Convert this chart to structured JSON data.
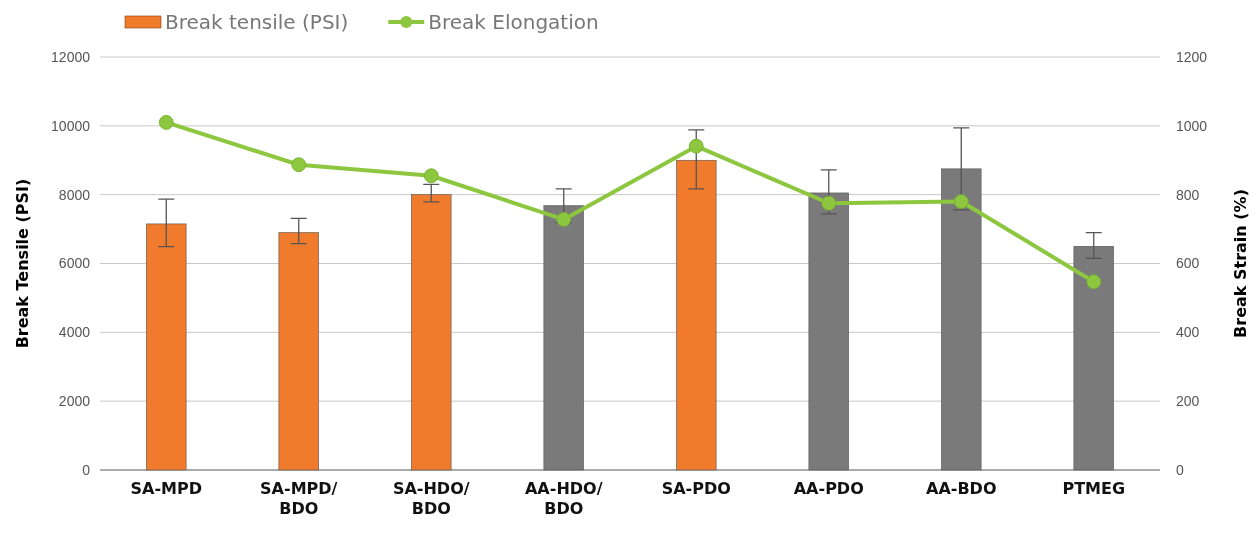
{
  "chart_data": {
    "type": "bar",
    "ylabel": "Break Tensile (PSI)",
    "y2label": "Break Strain (%)",
    "categories": [
      "SA-MPD",
      "SA-MPD/BDO",
      "SA-HDO/BDO",
      "AA-HDO/BDO",
      "SA-PDO",
      "AA-PDO",
      "AA-BDO",
      "PTMEG"
    ],
    "series": [
      {
        "name": "Break tensile (PSI)",
        "color": "#f07b2c",
        "colors": [
          "#f07b2c",
          "#f07b2c",
          "#f07b2c",
          "#7a7a7a",
          "#f07b2c",
          "#7a7a7a",
          "#7a7a7a",
          "#7a7a7a"
        ],
        "values": [
          7150,
          6900,
          8000,
          7680,
          9000,
          8050,
          8750,
          6500
        ],
        "errors": [
          [
            6490,
            7870
          ],
          [
            6580,
            7310
          ],
          [
            7790,
            8300
          ],
          [
            7190,
            8170
          ],
          [
            8170,
            9880
          ],
          [
            7440,
            8720
          ],
          [
            7560,
            9940
          ],
          [
            6150,
            6900
          ]
        ]
      },
      {
        "name": "Break Elongation",
        "type": "line",
        "axis": "y2",
        "color": "#8dc63f",
        "values": [
          1010,
          887,
          855,
          728,
          941,
          775,
          780,
          547
        ]
      }
    ],
    "ylim": [
      0,
      12000
    ],
    "yticks": [
      0,
      2000,
      4000,
      6000,
      8000,
      10000,
      12000
    ],
    "y2lim": [
      0,
      1200
    ],
    "y2ticks": [
      0,
      200,
      400,
      600,
      800,
      1000,
      1200
    ],
    "grid": "y",
    "legend": "top",
    "marker": "circle",
    "line_style": "solid"
  }
}
